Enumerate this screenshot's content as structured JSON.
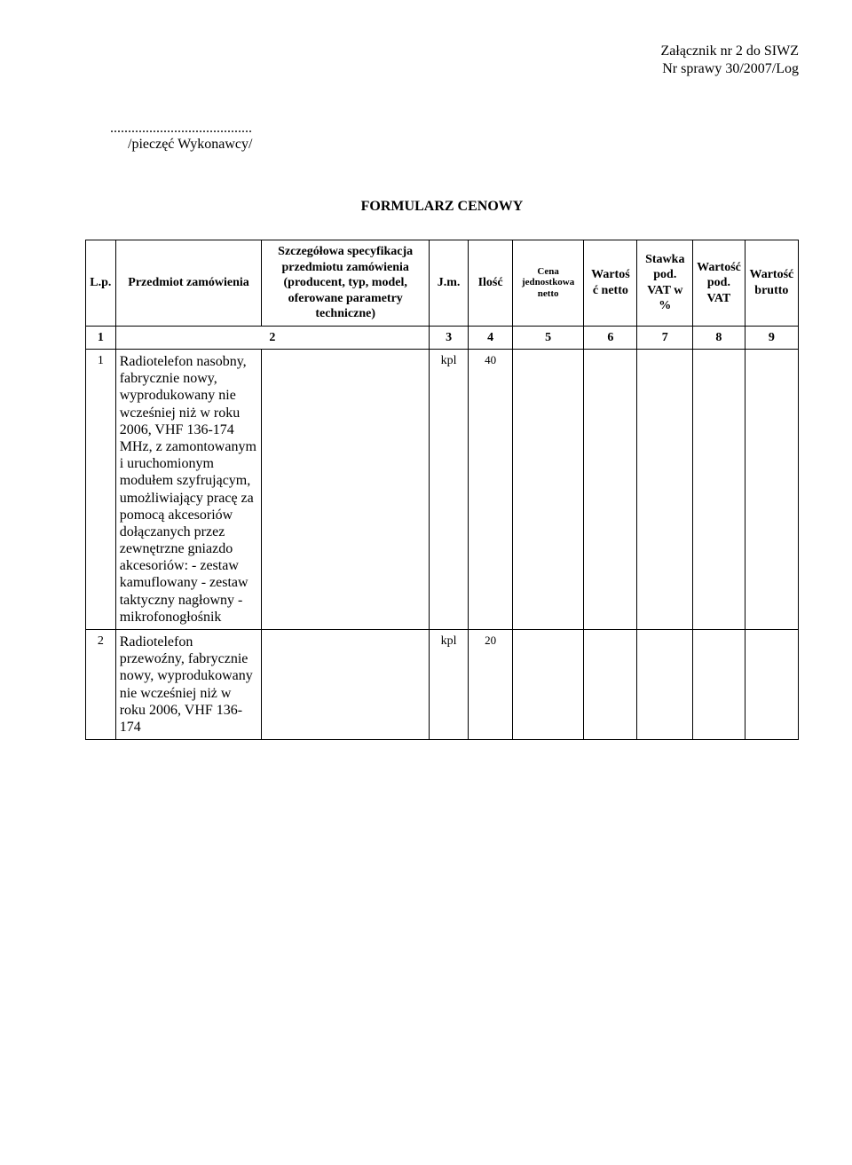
{
  "header": {
    "attachment_line": "Załącznik nr 2 do SIWZ",
    "case_line": "Nr sprawy 30/2007/Log"
  },
  "stamp": {
    "dots": "........................................",
    "caption": "/pieczęć Wykonawcy/"
  },
  "title": "FORMULARZ CENOWY",
  "table": {
    "headers": {
      "lp": "L.p.",
      "item": "Przedmiot zamówienia",
      "spec": "Szczegółowa specyfikacja przedmiotu zamówienia (producent, typ, model, oferowane parametry techniczne)",
      "jm": "J.m.",
      "qty": "Ilość",
      "cena": "Cena jednostkowa netto",
      "wartosc_netto": "Wartoś ć netto",
      "stawka": "Stawka pod. VAT w %",
      "wartosc_pod_vat": "Wartość pod. VAT",
      "wartosc_brutto": "Wartość brutto"
    },
    "index_row": [
      "1",
      "2",
      "3",
      "4",
      "5",
      "6",
      "7",
      "8",
      "9"
    ],
    "rows": [
      {
        "lp": "1",
        "item": "Radiotelefon nasobny, fabrycznie nowy, wyprodukowany nie wcześniej niż w roku 2006, VHF 136-174 MHz, z zamontowanym i uruchomionym modułem szyfrującym, umożliwiający pracę za pomocą akcesoriów dołączanych przez zewnętrzne gniazdo akcesoriów:\n- zestaw kamuflowany\n- zestaw taktyczny nagłowny - mikrofonogłośnik",
        "spec": "",
        "jm": "kpl",
        "qty": "40",
        "cena": "",
        "wn": "",
        "stw": "",
        "wpv": "",
        "wb": ""
      },
      {
        "lp": "2",
        "item": "Radiotelefon przewoźny, fabrycznie nowy, wyprodukowany nie wcześniej niż w roku 2006, VHF 136-174",
        "spec": "",
        "jm": "kpl",
        "qty": "20",
        "cena": "",
        "wn": "",
        "stw": "",
        "wpv": "",
        "wb": ""
      }
    ]
  },
  "style": {
    "page_bg": "#ffffff",
    "text_color": "#000000",
    "border_color": "#000000",
    "body_fontsize": 16,
    "header_fontsize": 14,
    "cena_head_fontsize": 11
  }
}
